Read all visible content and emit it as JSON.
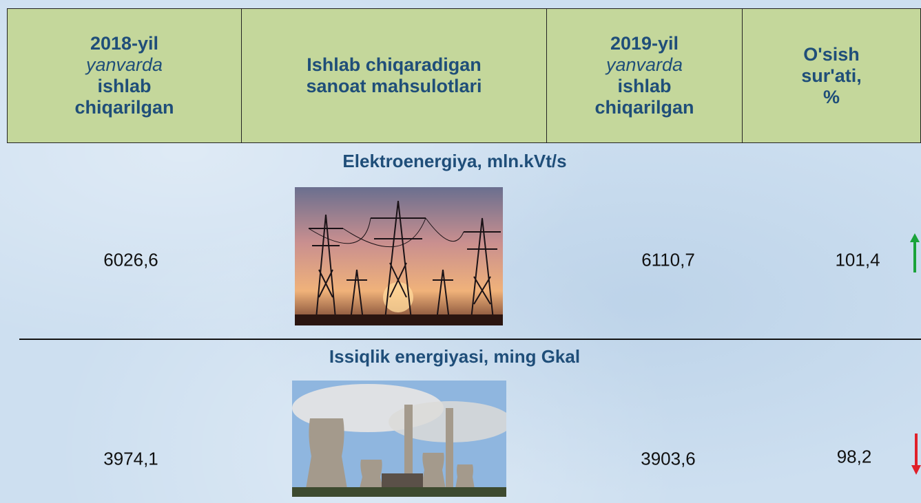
{
  "header": [
    {
      "lines": [
        "2018-yil",
        "yanvarda",
        "ishlab",
        "chiqarilgan"
      ]
    },
    {
      "lines": [
        "Ishlab chiqaradigan",
        "sanoat mahsulotlari"
      ]
    },
    {
      "lines": [
        "2019-yil",
        "yanvarda",
        "ishlab",
        "chiqarilgan"
      ]
    },
    {
      "lines": [
        "O'sish",
        "sur'ati,",
        "%"
      ]
    }
  ],
  "sections": [
    {
      "title": "Elektroenergiya, mln.kVt/s",
      "value_2018": "6026,6",
      "value_2019": "6110,7",
      "growth": "101,4"
    },
    {
      "title": "Issiqlik energiyasi, ming Gkal",
      "value_2018": "3974,1",
      "value_2019": "3903,6",
      "growth": "98,2"
    }
  ]
}
